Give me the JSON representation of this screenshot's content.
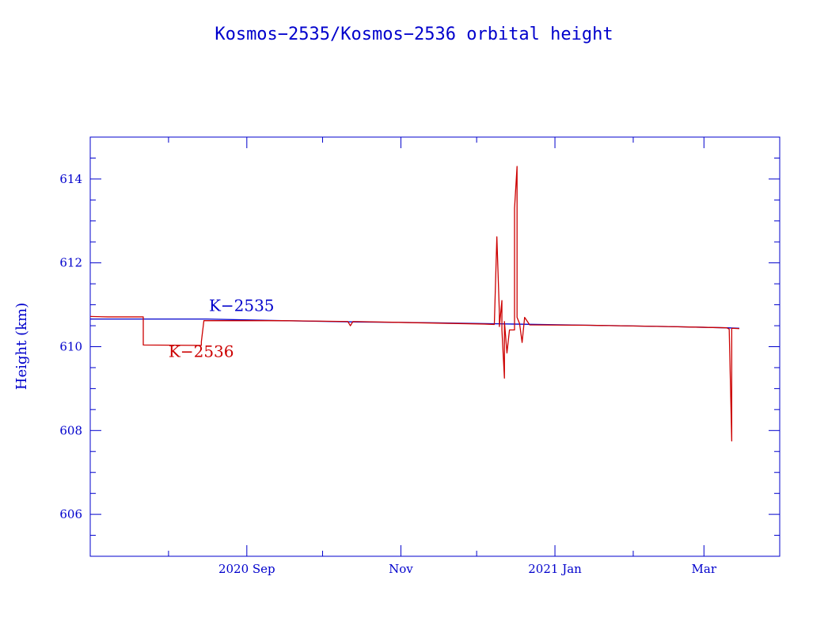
{
  "chart_data": {
    "type": "line",
    "title": "Kosmos−2535/Kosmos−2536 orbital height",
    "ylabel": "Height (km)",
    "xlabel": "",
    "ylim": [
      605,
      615
    ],
    "xlim": [
      "2020-07-01",
      "2021-03-31"
    ],
    "y_ticks": [
      {
        "value": 606,
        "label": "606"
      },
      {
        "value": 608,
        "label": "608"
      },
      {
        "value": 610,
        "label": "610"
      },
      {
        "value": 612,
        "label": "612"
      },
      {
        "value": 614,
        "label": "614"
      }
    ],
    "x_ticks": [
      {
        "date": "2020-09-01",
        "label": "2020 Sep"
      },
      {
        "date": "2020-11-01",
        "label": "Nov"
      },
      {
        "date": "2021-01-01",
        "label": "2021 Jan"
      },
      {
        "date": "2021-03-01",
        "label": "Mar"
      }
    ],
    "x_minor_ticks": [
      "2020-08-01",
      "2020-10-01",
      "2020-12-01",
      "2021-02-01",
      "2021-04-01"
    ],
    "grid": false,
    "colors": {
      "axes": "#0000cc",
      "k2535": "#0000cc",
      "k2536": "#cc0000"
    },
    "series": [
      {
        "name": "K−2535",
        "color": "#0000cc",
        "label_at": {
          "date": "2020-08-17",
          "height": 610.85
        },
        "points": [
          [
            "2020-07-01",
            610.66
          ],
          [
            "2020-08-16",
            610.66
          ],
          [
            "2020-09-15",
            610.62
          ],
          [
            "2020-10-15",
            610.59
          ],
          [
            "2020-11-15",
            610.57
          ],
          [
            "2020-12-15",
            610.54
          ],
          [
            "2021-01-15",
            610.51
          ],
          [
            "2021-02-15",
            610.48
          ],
          [
            "2021-03-10",
            610.45
          ],
          [
            "2021-03-15",
            610.44
          ]
        ]
      },
      {
        "name": "K−2536",
        "color": "#cc0000",
        "label_at": {
          "date": "2020-08-01",
          "height": 609.75
        },
        "points": [
          [
            "2020-07-01",
            610.72
          ],
          [
            "2020-07-08",
            610.71
          ],
          [
            "2020-07-22",
            610.71
          ],
          [
            "2020-07-22",
            610.04
          ],
          [
            "2020-08-14",
            610.03
          ],
          [
            "2020-08-14",
            610.12
          ],
          [
            "2020-08-15",
            610.62
          ],
          [
            "2020-09-15",
            610.62
          ],
          [
            "2020-10-11",
            610.6
          ],
          [
            "2020-10-12",
            610.5
          ],
          [
            "2020-10-13",
            610.6
          ],
          [
            "2020-10-31",
            610.58
          ],
          [
            "2020-12-04",
            610.54
          ],
          [
            "2020-12-08",
            610.53
          ],
          [
            "2020-12-09",
            612.62
          ],
          [
            "2020-12-10",
            610.8
          ],
          [
            "2020-12-10",
            610.48
          ],
          [
            "2020-12-11",
            611.1
          ],
          [
            "2020-12-11",
            610.4
          ],
          [
            "2020-12-12",
            609.25
          ],
          [
            "2020-12-12",
            610.6
          ],
          [
            "2020-12-13",
            609.85
          ],
          [
            "2020-12-14",
            610.4
          ],
          [
            "2020-12-16",
            610.4
          ],
          [
            "2020-12-16",
            613.3
          ],
          [
            "2020-12-17",
            614.3
          ],
          [
            "2020-12-17",
            610.7
          ],
          [
            "2020-12-18",
            610.55
          ],
          [
            "2020-12-19",
            610.1
          ],
          [
            "2020-12-20",
            610.7
          ],
          [
            "2020-12-22",
            610.52
          ],
          [
            "2021-01-15",
            610.51
          ],
          [
            "2021-02-15",
            610.48
          ],
          [
            "2021-03-10",
            610.45
          ],
          [
            "2021-03-11",
            610.42
          ],
          [
            "2021-03-12",
            607.75
          ],
          [
            "2021-03-12",
            610.44
          ],
          [
            "2021-03-15",
            610.43
          ]
        ]
      }
    ]
  }
}
